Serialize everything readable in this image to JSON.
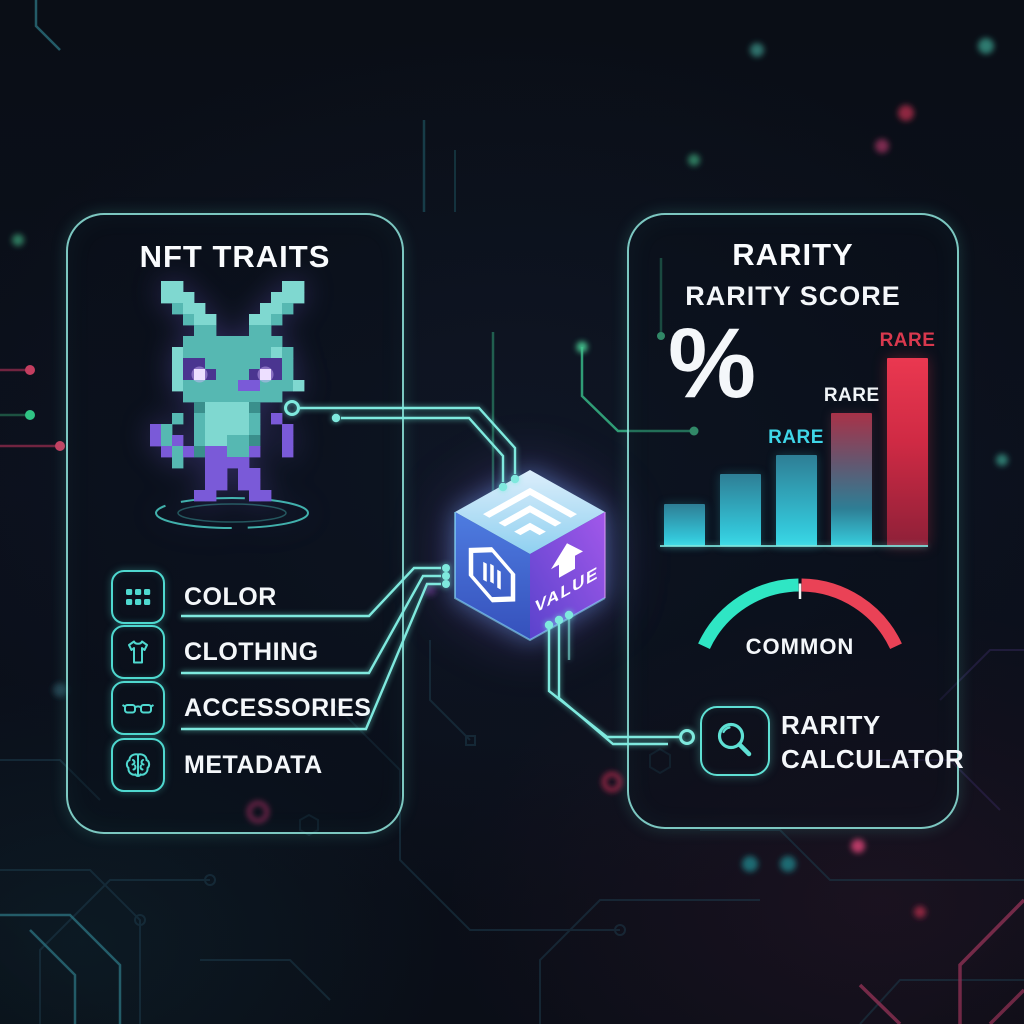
{
  "left_panel": {
    "title": "NFT TRAITS",
    "creature": "voxel-bunny-character",
    "traits": [
      {
        "label": "COLOR",
        "icon": "color-swatch-grid-icon"
      },
      {
        "label": "CLOTHING",
        "icon": "tshirt-icon"
      },
      {
        "label": "ACCESSORIES",
        "icon": "glasses-icon"
      },
      {
        "label": "METADATA",
        "icon": "brain-icon"
      }
    ]
  },
  "value_cube": {
    "label": "VALUE",
    "top_icon": "circuit-maze-icon",
    "left_icon": "hex-badge-icon",
    "right_icon": "arrow-up-icon"
  },
  "right_panel": {
    "title": "RARITY",
    "subtitle": "RARITY SCORE",
    "percent_symbol": "%",
    "gauge": {
      "label": "COMMON",
      "left_color": "#2fe6c4",
      "right_color": "#ea4256"
    },
    "calculator": {
      "line1": "RARITY",
      "line2": "CALCULATOR",
      "icon": "magnifier-icon"
    }
  },
  "chart_data": {
    "type": "bar",
    "title": "RARITY SCORE",
    "values": [
      42,
      72,
      91,
      133,
      211
    ],
    "value_note": "relative bar heights, no numeric axis shown",
    "bar_labels": [
      "",
      "",
      "RARE",
      "RARE",
      "RARE"
    ],
    "bar_label_colors": [
      "",
      "",
      "#3fd6e8",
      "#f0f4f7",
      "#d9394e"
    ],
    "bar_fill_styles": [
      "teal",
      "teal",
      "teal",
      "teal-to-red",
      "red"
    ],
    "baseline_color": "#7fe8e0",
    "grid": false,
    "legend": false
  },
  "creature_pixels": {
    "cell": 11,
    "legend": {
      "T": "#7fd8d0",
      "t": "#56b8b2",
      "m": "#3a8f8c",
      "p": "#7a5ad8",
      "P": "#4a3590",
      "w": "#ffffff"
    },
    "rows": [
      ".TT.........TT.",
      ".TTT.......TTT.",
      "..tTT.....TTt..",
      "...tTT...TTt...",
      "....tt...tt....",
      "...ttttttttt...",
      "..TttttttttTt..",
      "..TPPtttttPPt..",
      "..TPwPtttPwPt..",
      "..TtttttpptttT.",
      "...ttttttttt...",
      "....mTTTTm.....",
      "..t.tTTTTt.p...",
      "pt..tTTTTt..p..",
      "ptp.tTTttm..p..",
      ".ptpmppttp..p..",
      "..t..pppp......",
      ".....pp.pp.....",
      ".....pp.pp.....",
      "....pp...pp...."
    ]
  },
  "palette": {
    "background": "#0a0e16",
    "panel_border": "#8ee9de",
    "circuit_line": "#7fe9de",
    "green_trace": "#37b585",
    "text": "#f2f5f8",
    "cyan_label": "#3fd6e8",
    "red": "#e23b4d",
    "purple": "#7a5ad8"
  }
}
